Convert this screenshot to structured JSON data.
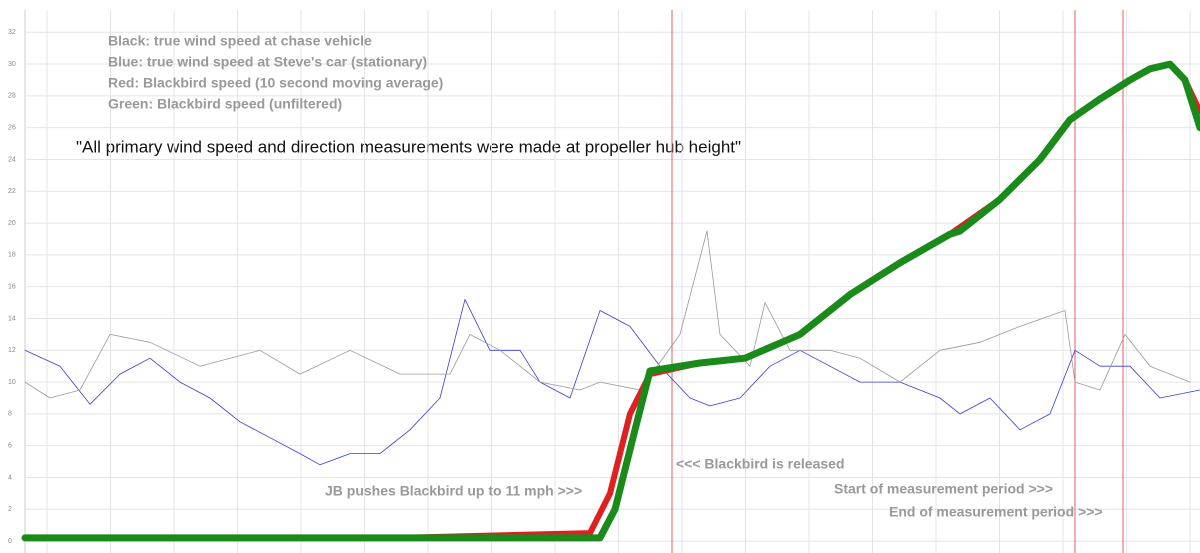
{
  "chart_data": {
    "type": "line",
    "quote": "\"All primary wind speed and direction measurements were made at propeller hub height\"",
    "annotations": [
      "JB pushes Blackbird up to 11 mph >>>",
      "<<< Blackbird is released",
      "Start of measurement period >>>",
      "End of measurement period >>>"
    ],
    "events": [
      672,
      1075,
      1123
    ],
    "event_color": "#e06060",
    "xlim": [
      25,
      1200
    ],
    "ylim": [
      -0.75,
      33.4
    ],
    "yticks": [
      0,
      2,
      4,
      6,
      8,
      10,
      12,
      14,
      16,
      18,
      20,
      22,
      24,
      26,
      28,
      30,
      32
    ],
    "grid": true,
    "series": [
      {
        "name": "Blue: true wind speed at Steve's car (stationary)",
        "color": "#3a3adf",
        "width": 0.8,
        "x": [
          25,
          60,
          90,
          120,
          150,
          180,
          210,
          240,
          270,
          300,
          320,
          350,
          380,
          410,
          440,
          465,
          490,
          520,
          540,
          570,
          600,
          630,
          660,
          690,
          710,
          740,
          770,
          800,
          830,
          860,
          900,
          940,
          960,
          990,
          1020,
          1050,
          1075,
          1100,
          1130,
          1160,
          1200
        ],
        "values": [
          12,
          11,
          8.6,
          10.5,
          11.5,
          10,
          9,
          7.5,
          6.5,
          5.5,
          4.8,
          5.5,
          5.5,
          7,
          9,
          15.2,
          12,
          12,
          10,
          9,
          14.5,
          13.5,
          11,
          9,
          8.5,
          9,
          11,
          12,
          11,
          10,
          10,
          9,
          8,
          9,
          7,
          8,
          12,
          11,
          11,
          9,
          9.5
        ]
      },
      {
        "name": "Black: true wind speed at chase vehicle",
        "color": "#999999",
        "width": 0.8,
        "x": [
          25,
          50,
          80,
          110,
          150,
          200,
          260,
          300,
          350,
          400,
          450,
          470,
          500,
          540,
          580,
          600,
          640,
          680,
          707,
          720,
          750,
          765,
          790,
          830,
          860,
          900,
          940,
          980,
          1020,
          1065,
          1075,
          1100,
          1125,
          1150,
          1190
        ],
        "values": [
          10,
          9,
          9.5,
          13,
          12.5,
          11,
          12,
          10.5,
          12,
          10.5,
          10.5,
          13,
          12,
          10,
          9.5,
          10,
          9.5,
          13,
          19.5,
          13,
          11,
          15,
          12,
          12,
          11.5,
          10,
          12,
          12.5,
          13.5,
          14.5,
          10,
          9.5,
          13,
          11,
          10
        ]
      },
      {
        "name": "Red: Blackbird speed (10 second moving average)",
        "color": "#e02020",
        "width": 6,
        "x": [
          25,
          200,
          400,
          590,
          610,
          630,
          650,
          700,
          745,
          800,
          850,
          900,
          950,
          1000,
          1040,
          1070,
          1100,
          1130,
          1150,
          1170,
          1185,
          1200
        ],
        "values": [
          0.2,
          0.2,
          0.2,
          0.5,
          3,
          8,
          10.5,
          11.2,
          11.5,
          13,
          15.5,
          17.5,
          19.3,
          21.5,
          24,
          26.5,
          27.8,
          29,
          29.7,
          30,
          29,
          27
        ]
      },
      {
        "name": "Green: Blackbird speed (unfiltered)",
        "color": "#1a8a1a",
        "width": 7,
        "x": [
          25,
          200,
          400,
          600,
          615,
          635,
          650,
          700,
          745,
          800,
          850,
          900,
          950,
          960,
          1000,
          1040,
          1070,
          1100,
          1130,
          1150,
          1170,
          1185,
          1200
        ],
        "values": [
          0.2,
          0.2,
          0.2,
          0.2,
          2,
          7,
          10.7,
          11.2,
          11.5,
          13,
          15.5,
          17.5,
          19.3,
          19.5,
          21.5,
          24,
          26.5,
          27.8,
          29,
          29.7,
          30,
          29,
          26
        ]
      }
    ]
  }
}
